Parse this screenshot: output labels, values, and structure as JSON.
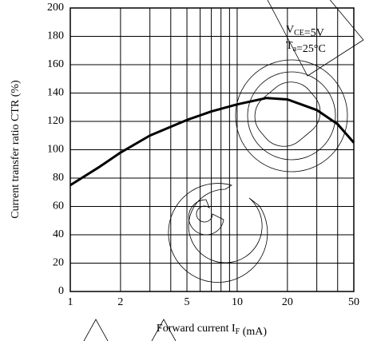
{
  "chart_data": {
    "type": "line",
    "y_label": "Current transfer ratio CTR (%)",
    "x_label": [
      {
        "text": "Forward current I"
      },
      {
        "sub": "F"
      },
      {
        "text": " (mA)"
      }
    ],
    "annotations": [
      [
        {
          "text": "V"
        },
        {
          "sub": "CE"
        },
        {
          "text": "=5V"
        }
      ],
      [
        {
          "text": "T"
        },
        {
          "sub": "a"
        },
        {
          "text": "=25°C"
        }
      ]
    ],
    "x_scale": "log",
    "x": [
      1,
      1.5,
      2,
      3,
      5,
      7,
      10,
      15,
      20,
      30,
      40,
      50
    ],
    "values": [
      75,
      88,
      98,
      110,
      121,
      127,
      132,
      136.5,
      135.5,
      128,
      118,
      105
    ],
    "color": "#000000",
    "xlim": [
      1,
      50
    ],
    "xticks": [
      1,
      2,
      5,
      10,
      20,
      50
    ],
    "x_minor_grid": [
      3,
      4,
      6,
      7,
      8,
      9,
      30,
      40
    ],
    "ylim": [
      0,
      200
    ],
    "yticks": [
      0,
      20,
      40,
      60,
      80,
      100,
      120,
      140,
      160,
      180,
      200
    ],
    "grid": true
  }
}
